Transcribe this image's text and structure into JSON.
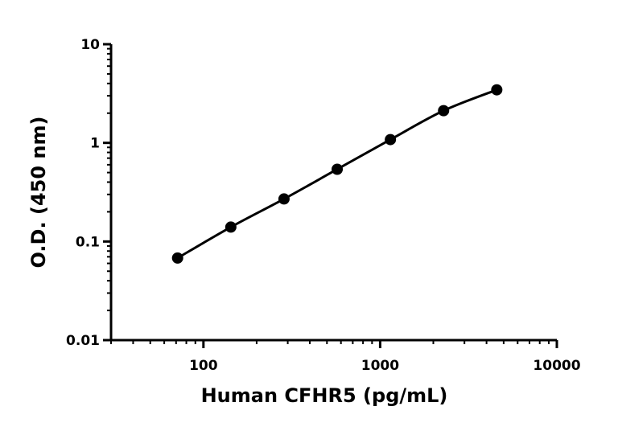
{
  "chart_data": {
    "type": "scatter",
    "title": "",
    "xlabel": "Human CFHR5 (pg/mL)",
    "ylabel": "O.D. (450 nm)",
    "x_scale": "log",
    "y_scale": "log",
    "xlim": [
      30,
      10000
    ],
    "ylim": [
      0.01,
      10
    ],
    "x_ticks": [
      100,
      1000,
      10000
    ],
    "x_tick_labels": [
      "100",
      "1000",
      "10000"
    ],
    "y_ticks": [
      0.01,
      0.1,
      1,
      10
    ],
    "y_tick_labels": [
      "0.01",
      "0.1",
      "1",
      "10"
    ],
    "grid": false,
    "series": [
      {
        "x": [
          71.4,
          142.9,
          285.7,
          571.4,
          1142.9,
          2285.7,
          4571.4
        ],
        "y": [
          0.068,
          0.14,
          0.27,
          0.54,
          1.08,
          2.12,
          3.45
        ],
        "color": "#000000",
        "fit_line": true
      }
    ]
  }
}
